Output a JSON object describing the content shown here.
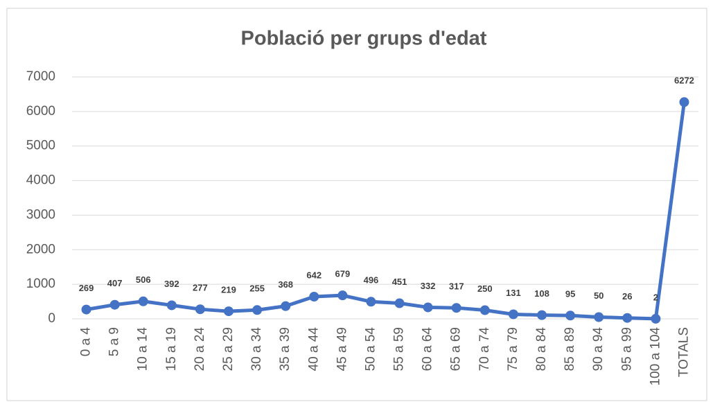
{
  "chart_data": {
    "type": "line",
    "title": "Població per grups d'edat",
    "categories": [
      "0 a 4",
      "5 a 9",
      "10 a 14",
      "15 a 19",
      "20 a 24",
      "25 a 29",
      "30 a 34",
      "35 a 39",
      "40 a 44",
      "45 a 49",
      "50 a 54",
      "55 a 59",
      "60 a 64",
      "65 a 69",
      "70 a 74",
      "75 a 79",
      "80 a 84",
      "85 a 89",
      "90 a 94",
      "95 a 99",
      "100 a 104",
      "TOTALS"
    ],
    "values": [
      269,
      407,
      506,
      392,
      277,
      219,
      255,
      368,
      642,
      679,
      496,
      451,
      332,
      317,
      250,
      131,
      108,
      95,
      50,
      26,
      2,
      6272
    ],
    "color": "#4472c4",
    "ylim": [
      0,
      7000
    ],
    "yticks": [
      0,
      1000,
      2000,
      3000,
      4000,
      5000,
      6000,
      7000
    ],
    "grid": true
  }
}
